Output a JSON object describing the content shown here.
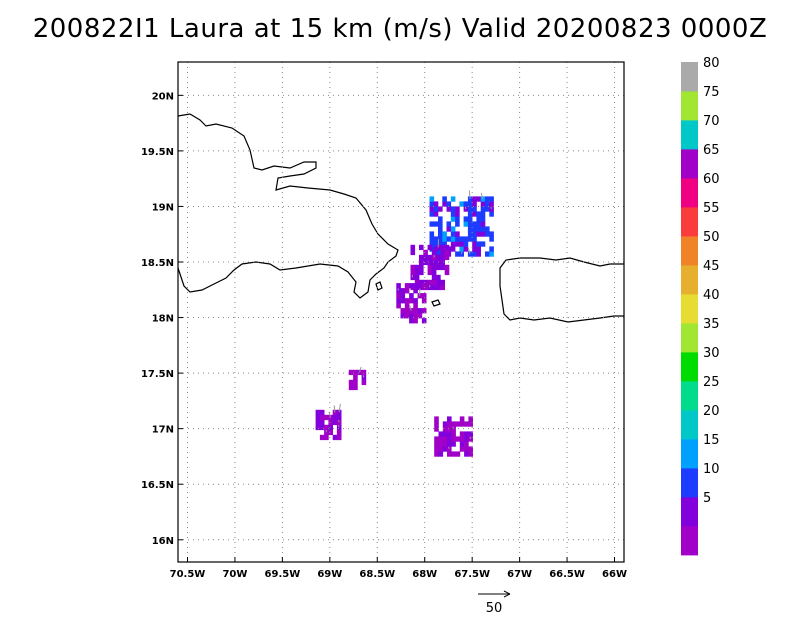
{
  "title": "200822I1 Laura at 15 km (m/s) Valid 20200823 0000Z",
  "chart_data": {
    "type": "heatmap",
    "title": "200822I1 Laura at 15 km (m/s) Valid 20200823 0000Z",
    "units": "m/s",
    "xlim": [
      -70.6,
      -65.9
    ],
    "ylim": [
      15.8,
      20.3
    ],
    "x_ticks": [
      {
        "value": -70.5,
        "label": "70.5W"
      },
      {
        "value": -70.0,
        "label": "70W"
      },
      {
        "value": -69.5,
        "label": "69.5W"
      },
      {
        "value": -69.0,
        "label": "69W"
      },
      {
        "value": -68.5,
        "label": "68.5W"
      },
      {
        "value": -68.0,
        "label": "68W"
      },
      {
        "value": -67.5,
        "label": "67.5W"
      },
      {
        "value": -67.0,
        "label": "67W"
      },
      {
        "value": -66.5,
        "label": "66.5W"
      },
      {
        "value": -66.0,
        "label": "66W"
      }
    ],
    "y_ticks": [
      {
        "value": 16.0,
        "label": "16N"
      },
      {
        "value": 16.5,
        "label": "16.5N"
      },
      {
        "value": 17.0,
        "label": "17N"
      },
      {
        "value": 17.5,
        "label": "17.5N"
      },
      {
        "value": 18.0,
        "label": "18N"
      },
      {
        "value": 18.5,
        "label": "18.5N"
      },
      {
        "value": 19.0,
        "label": "19N"
      },
      {
        "value": 19.5,
        "label": "19.5N"
      },
      {
        "value": 20.0,
        "label": "20N"
      }
    ],
    "grid": true,
    "colorbar": {
      "levels": [
        {
          "label": "",
          "color": "#a000c8"
        },
        {
          "label": "5",
          "color": "#8200dc"
        },
        {
          "label": "10",
          "color": "#1e3cff"
        },
        {
          "label": "15",
          "color": "#00a0ff"
        },
        {
          "label": "20",
          "color": "#00c8c8"
        },
        {
          "label": "25",
          "color": "#00dc8c"
        },
        {
          "label": "30",
          "color": "#00dc00"
        },
        {
          "label": "35",
          "color": "#a0e632"
        },
        {
          "label": "40",
          "color": "#e6dc32"
        },
        {
          "label": "45",
          "color": "#e6af2d"
        },
        {
          "label": "50",
          "color": "#f08228"
        },
        {
          "label": "55",
          "color": "#fa3c3c"
        },
        {
          "label": "60",
          "color": "#f00082"
        },
        {
          "label": "65",
          "color": "#a000c8"
        },
        {
          "label": "70",
          "color": "#00c8c8"
        },
        {
          "label": "75",
          "color": "#a0e632"
        },
        {
          "label": "80",
          "color": "#aaaaaa"
        }
      ]
    },
    "wind_regions": [
      {
        "lon": [
          -67.95,
          -67.3
        ],
        "lat": [
          18.55,
          19.05
        ],
        "value": 12
      },
      {
        "lon": [
          -68.15,
          -67.75
        ],
        "lat": [
          18.25,
          18.65
        ],
        "value": 6
      },
      {
        "lon": [
          -68.3,
          -68.0
        ],
        "lat": [
          17.95,
          18.3
        ],
        "value": 4
      },
      {
        "lon": [
          -68.8,
          -68.65
        ],
        "lat": [
          17.35,
          17.52
        ],
        "value": 3
      },
      {
        "lon": [
          -69.15,
          -68.9
        ],
        "lat": [
          16.9,
          17.15
        ],
        "value": 4
      },
      {
        "lon": [
          -67.9,
          -67.5
        ],
        "lat": [
          16.75,
          17.1
        ],
        "value": 4
      }
    ],
    "reference_vector": {
      "value": 50,
      "label": "50"
    }
  }
}
